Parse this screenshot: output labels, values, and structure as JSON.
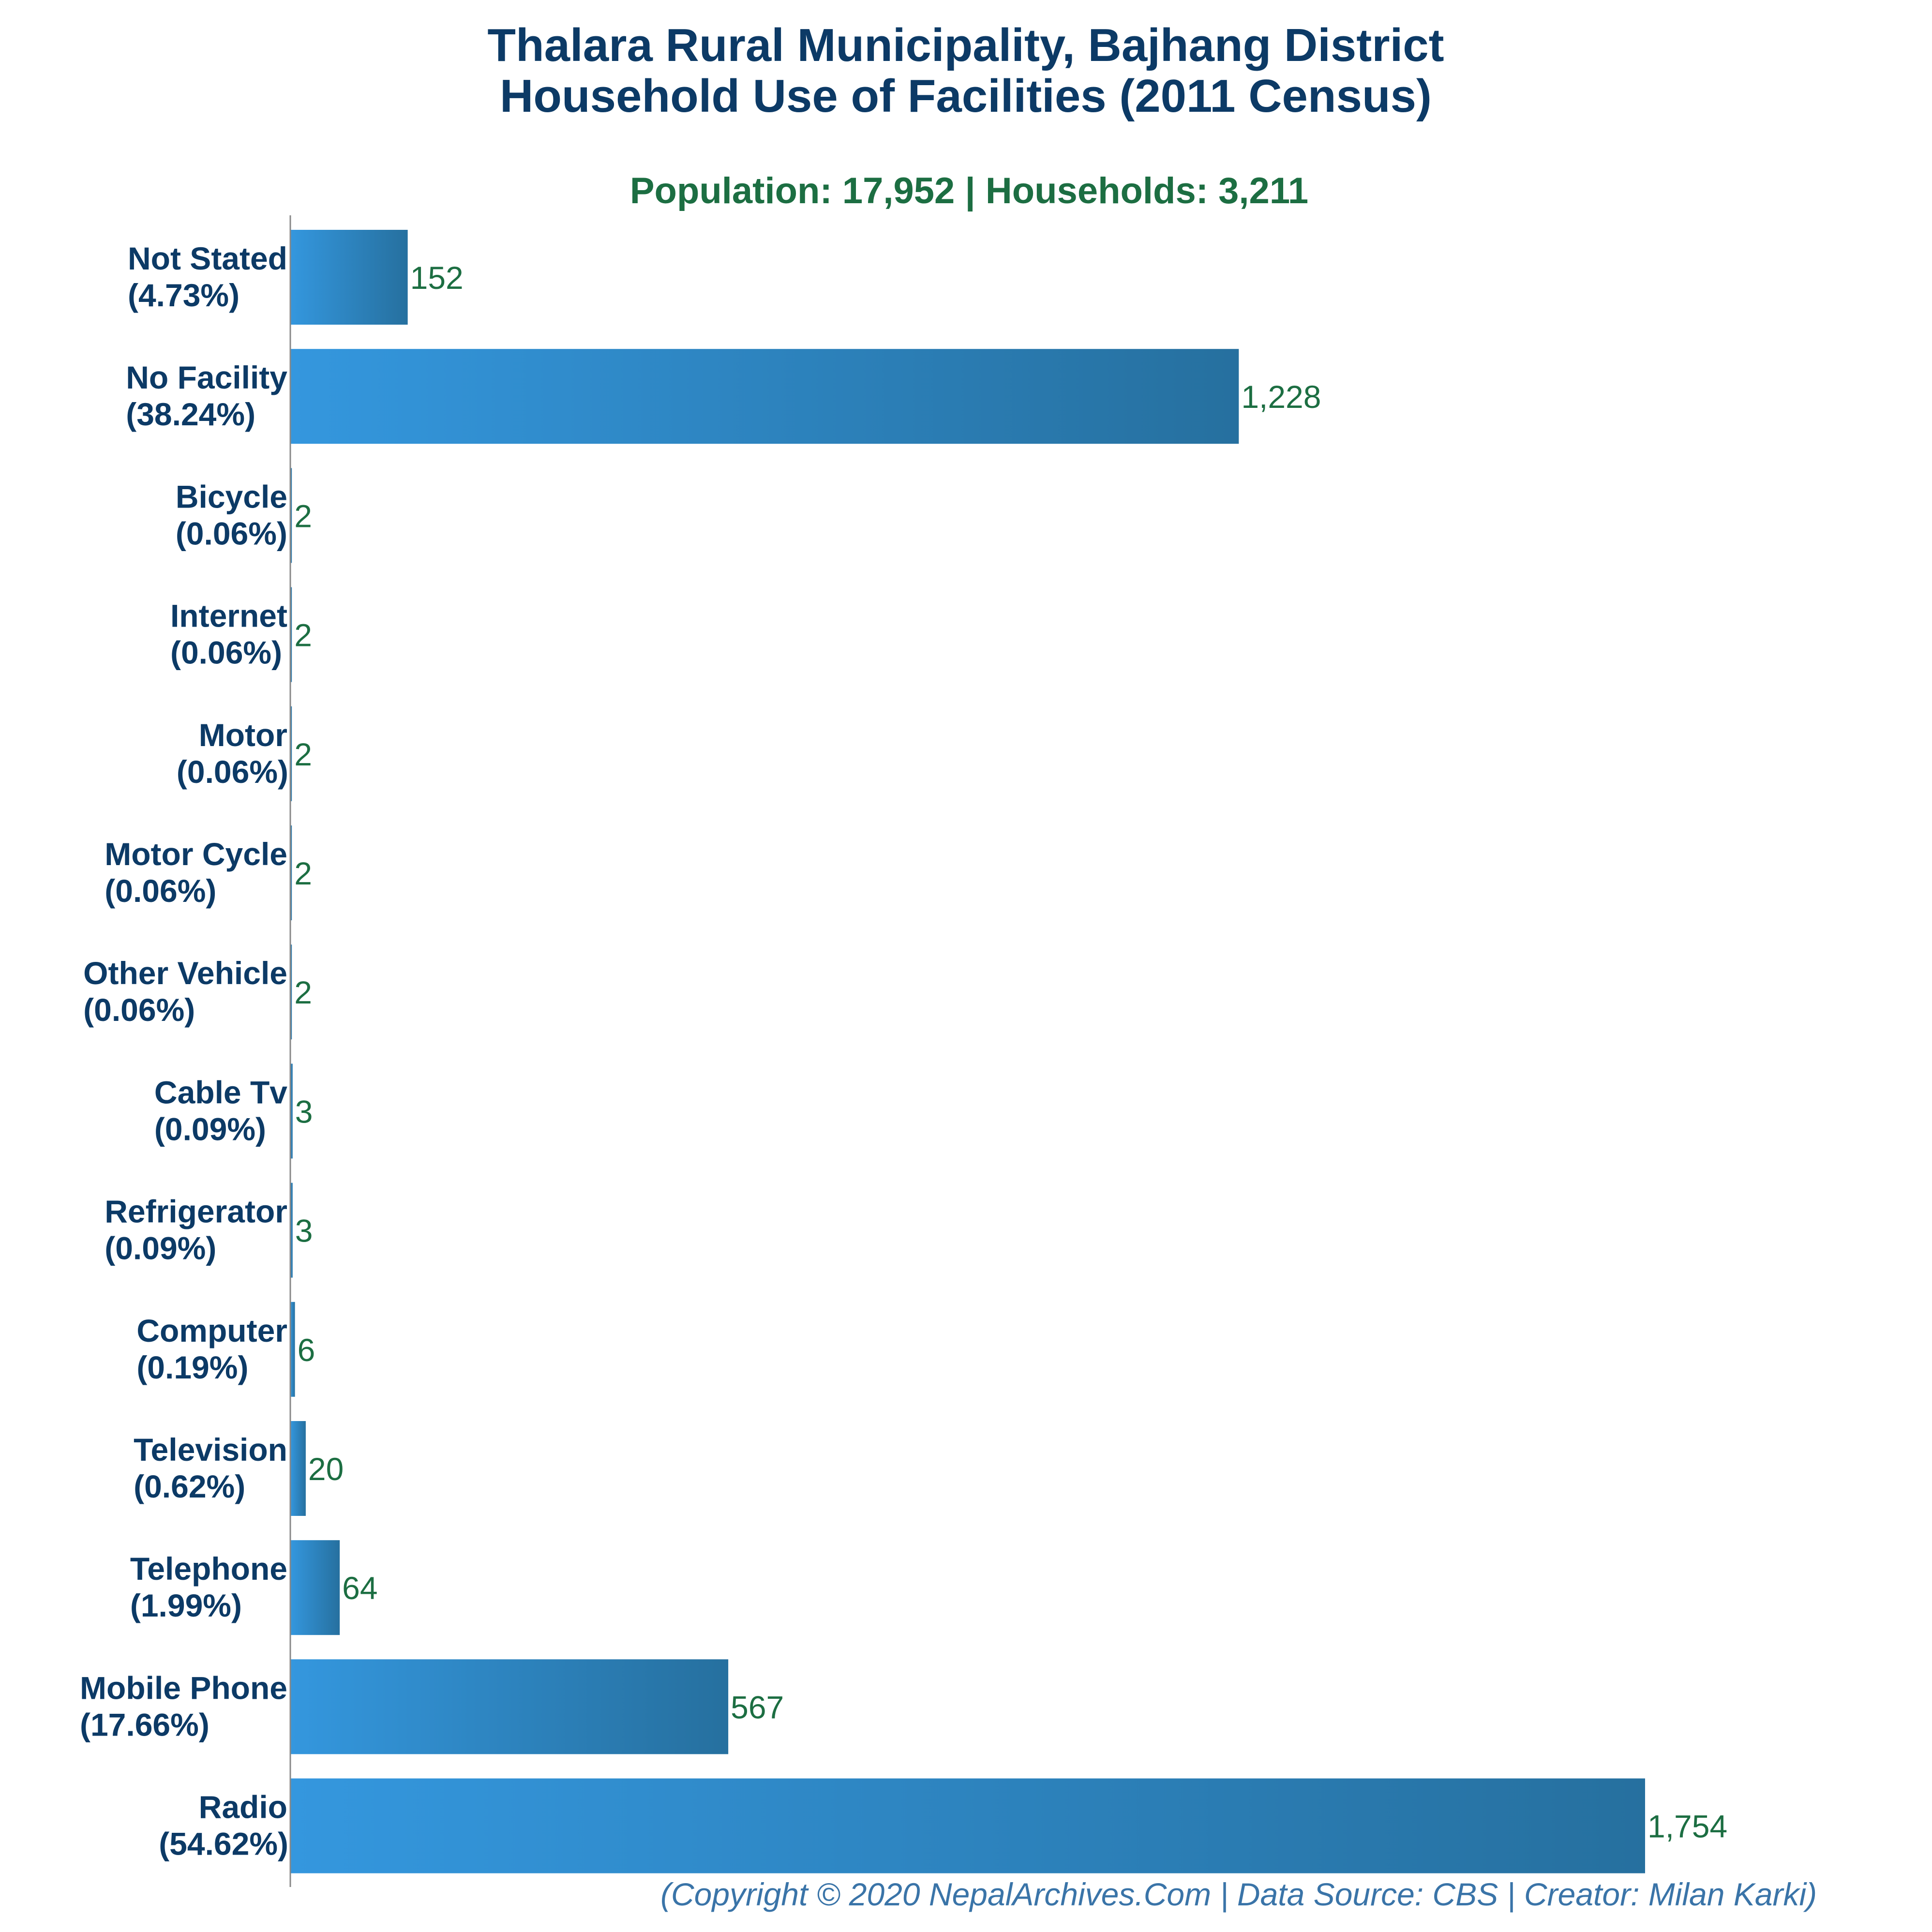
{
  "title_lines": [
    "Thalara Rural Municipality, Bajhang District",
    "Household Use of Facilities (2011 Census)"
  ],
  "subtitle": "Population: 17,952 | Households: 3,211",
  "footer": "(Copyright © 2020 NepalArchives.Com | Data Source: CBS | Creator: Milan Karki)",
  "colors": {
    "bar_start": "#3497de",
    "bar_end": "#26709f",
    "title": "#0c3a66",
    "subtitle": "#1c6e42",
    "value_label": "#1c6e42",
    "footer": "#3a74a8",
    "axis": "#888888"
  },
  "chart_data": {
    "type": "bar",
    "orientation": "horizontal",
    "title": "Thalara Rural Municipality, Bajhang District Household Use of Facilities (2011 Census)",
    "subtitle": "Population: 17,952 | Households: 3,211",
    "xlabel": "",
    "ylabel": "",
    "grid": false,
    "legend": "none",
    "xlim": [
      0,
      1754
    ],
    "categories": [
      "Not Stated",
      "No Facility",
      "Bicycle",
      "Internet",
      "Motor",
      "Motor Cycle",
      "Other Vehicle",
      "Cable Tv",
      "Refrigerator",
      "Computer",
      "Television",
      "Telephone",
      "Mobile Phone",
      "Radio"
    ],
    "percent_labels": [
      "(4.73%)",
      "(38.24%)",
      "(0.06%)",
      "(0.06%)",
      "(0.06%)",
      "(0.06%)",
      "(0.06%)",
      "(0.09%)",
      "(0.09%)",
      "(0.19%)",
      "(0.62%)",
      "(1.99%)",
      "(17.66%)",
      "(54.62%)"
    ],
    "values": [
      152,
      1228,
      2,
      2,
      2,
      2,
      2,
      3,
      3,
      6,
      20,
      64,
      567,
      1754
    ],
    "value_labels": [
      "152",
      "1,228",
      "2",
      "2",
      "2",
      "2",
      "2",
      "3",
      "3",
      "6",
      "20",
      "64",
      "567",
      "1,754"
    ]
  }
}
